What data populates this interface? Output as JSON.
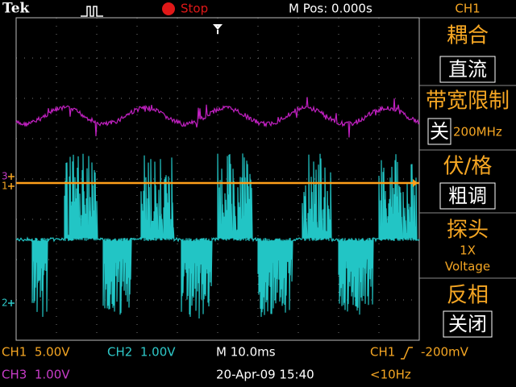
{
  "header": {
    "brand": "Tek",
    "status": "Stop",
    "position": "M Pos: 0.000s",
    "channel": "CH1"
  },
  "markers": {
    "ch3": "3",
    "ch1": "1",
    "ch2": "2"
  },
  "menu": [
    {
      "label": "耦合",
      "value": "直流"
    },
    {
      "label": "带宽限制",
      "value": "关",
      "detail": "200MHz"
    },
    {
      "label": "伏/格",
      "value": "粗调"
    },
    {
      "label": "探头",
      "lines": [
        "1X",
        "Voltage"
      ]
    },
    {
      "label": "反相",
      "value": "关闭"
    }
  ],
  "footer": {
    "ch1": "CH1  5.00V",
    "ch2": "CH2  1.00V",
    "timebase": "M 10.0ms",
    "trigger_source": "CH1",
    "trigger_level": "-200mV",
    "ch3": "CH3  1.00V",
    "datetime": "20-Apr-09 15:40",
    "frequency": "<10Hz"
  }
}
